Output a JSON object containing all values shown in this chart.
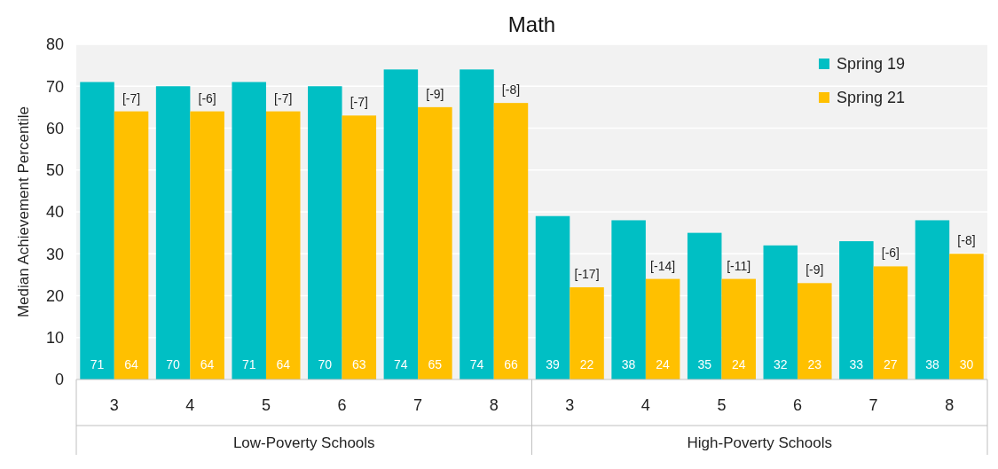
{
  "chart_data": {
    "type": "bar",
    "title": "Math",
    "ylabel": "Median Achievement Percentile",
    "categories": [
      "3",
      "4",
      "5",
      "6",
      "7",
      "8",
      "3",
      "4",
      "5",
      "6",
      "7",
      "8"
    ],
    "series": [
      {
        "name": "Spring 19",
        "color": "#00bfc4",
        "values": [
          71,
          70,
          71,
          70,
          74,
          74,
          39,
          38,
          35,
          32,
          33,
          38
        ]
      },
      {
        "name": "Spring 21",
        "color": "#ffc000",
        "values": [
          64,
          64,
          64,
          63,
          65,
          66,
          22,
          24,
          24,
          23,
          27,
          30
        ]
      }
    ],
    "ylim": [
      0,
      80
    ],
    "yticks": [
      0,
      10,
      20,
      30,
      40,
      50,
      60,
      70,
      80
    ],
    "grid": "y",
    "legend": "top right",
    "data_labels": true,
    "annotations": [
      "[-7]",
      "[-6]",
      "[-7]",
      "[-7]",
      "[-9]",
      "[-8]",
      "[-17]",
      "[-14]",
      "[-11]",
      "[-9]",
      "[-6]",
      "[-8]",
      "Low-Poverty Schools",
      "High-Poverty Schools"
    ]
  }
}
